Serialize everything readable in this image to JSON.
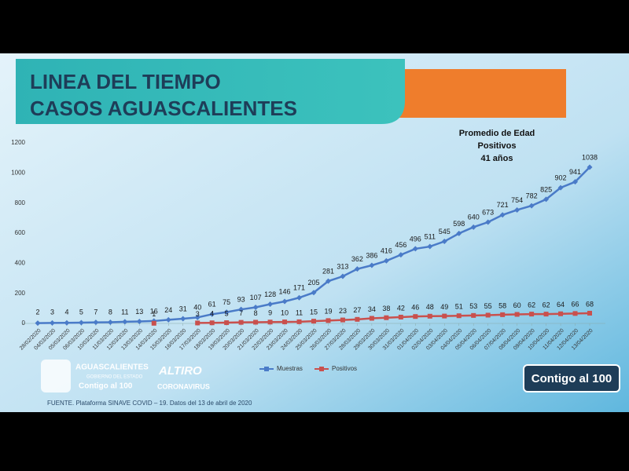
{
  "chart_data": {
    "type": "line",
    "title": [
      "LINEA DEL TIEMPO",
      "CASOS AGUASCALIENTES"
    ],
    "annotation": [
      "Promedio de Edad",
      "Positivos",
      "41 años"
    ],
    "categories": [
      "28/02/2020",
      "04/03/2020",
      "05/03/2020",
      "06/03/2020",
      "10/03/2020",
      "11/03/2020",
      "12/03/2020",
      "13/03/2020",
      "14/03/2020",
      "15/03/2020",
      "16/03/2020",
      "17/03/2020",
      "18/03/2020",
      "19/03/2020",
      "20/03/2020",
      "21/03/2020",
      "22/03/2020",
      "23/03/2020",
      "24/03/2020",
      "25/03/2020",
      "26/03/2020",
      "27/03/2020",
      "28/03/2020",
      "29/03/2020",
      "30/03/2020",
      "31/03/2020",
      "01/04/2020",
      "02/04/2020",
      "03/04/2020",
      "04/04/2020",
      "05/04/2020",
      "06/04/2020",
      "07/04/2020",
      "08/04/2020",
      "09/04/2020",
      "10/04/2020",
      "11/04/2020",
      "12/04/2020",
      "13/04/2020"
    ],
    "series": [
      {
        "name": "Muestras",
        "color": "#4a7bc8",
        "values": [
          2,
          3,
          4,
          5,
          7,
          8,
          11,
          13,
          16,
          24,
          31,
          40,
          61,
          75,
          93,
          107,
          128,
          146,
          171,
          205,
          281,
          313,
          362,
          386,
          416,
          456,
          496,
          511,
          545,
          598,
          640,
          673,
          721,
          754,
          782,
          825,
          902,
          941,
          1038
        ]
      },
      {
        "name": "Positivos",
        "color": "#c9504d",
        "values": [
          null,
          null,
          null,
          null,
          null,
          null,
          null,
          null,
          1,
          null,
          null,
          3,
          4,
          5,
          7,
          8,
          9,
          10,
          11,
          15,
          19,
          23,
          27,
          34,
          38,
          42,
          46,
          48,
          49,
          51,
          53,
          55,
          58,
          60,
          62,
          62,
          64,
          66,
          68
        ]
      }
    ],
    "ylim": [
      0,
      1200
    ],
    "yticks": [
      0,
      200,
      400,
      600,
      800,
      1000,
      1200
    ],
    "legend": "bottom",
    "source": "FUENTE. Plataforma SINAVE COVID – 19. Datos del 13 de abril de 2020"
  },
  "logos": {
    "state": [
      "AGUASCALIENTES",
      "GOBIERNO DEL ESTADO",
      "Contigo al 100"
    ],
    "campaign": [
      "ALTIRO",
      "CORONAVIRUS"
    ],
    "badge": "Contigo al 100"
  }
}
